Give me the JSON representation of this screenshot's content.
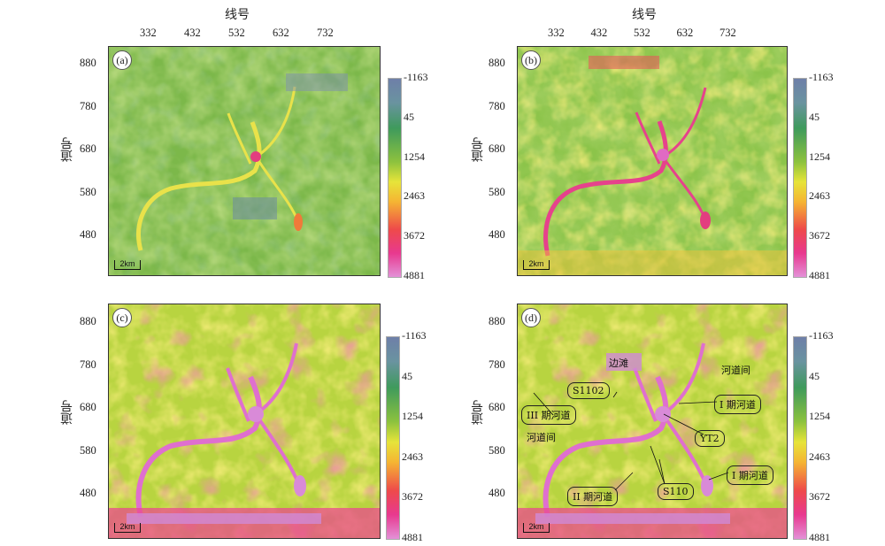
{
  "xaxis_title": "线号",
  "yaxis_title": "道号",
  "x_ticks": [
    "332",
    "432",
    "532",
    "632",
    "732"
  ],
  "y_ticks": [
    "880",
    "780",
    "680",
    "580",
    "480"
  ],
  "colorbar_labels": [
    "-1163",
    "45",
    "1254",
    "2463",
    "3672",
    "4881"
  ],
  "scale_label": "2km",
  "panels": [
    {
      "label": "(a)"
    },
    {
      "label": "(b)"
    },
    {
      "label": "(c)"
    },
    {
      "label": "(d)"
    }
  ],
  "annotations": {
    "bian_tan": "边滩",
    "hedao_jian_right": "河道间",
    "hedao_jian_left": "河道间",
    "s1102": "S1102",
    "phase1_channel": "I 期河道",
    "phase3_channel": "III 期河道",
    "yt2": "YT2",
    "phase2_channel_top": "I 期河道",
    "phase2_channel": "II 期河道",
    "s110": "S110"
  }
}
